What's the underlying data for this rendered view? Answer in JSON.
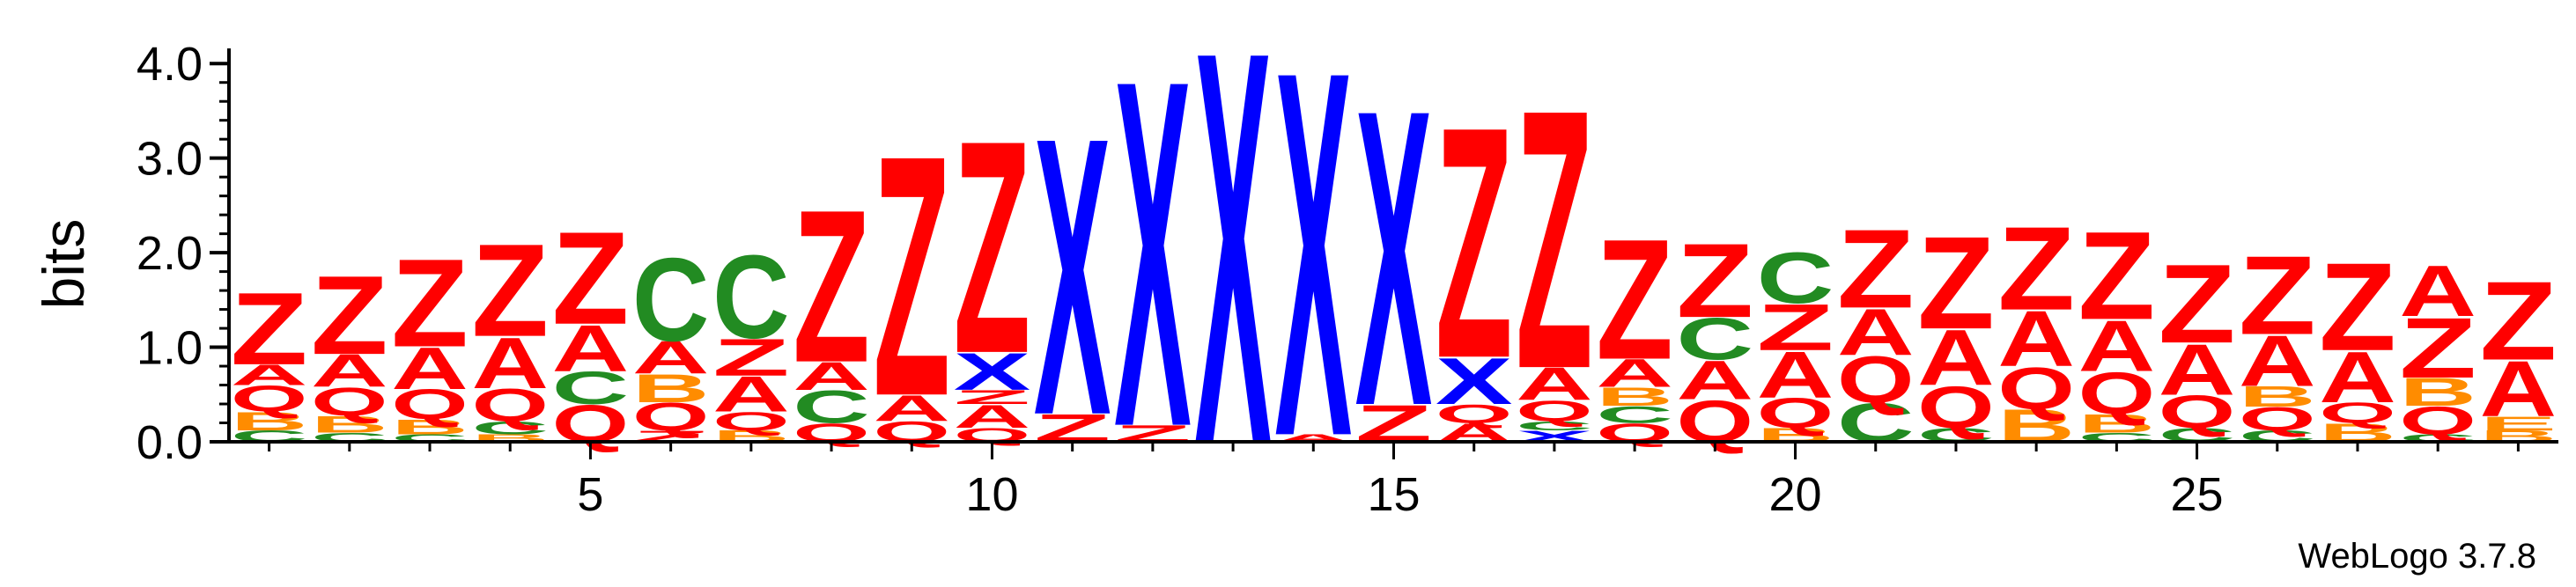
{
  "chart_data": {
    "type": "sequence-logo",
    "ylabel": "bits",
    "ylim": [
      0,
      4.3
    ],
    "y_ticks": [
      "0.0",
      "1.0",
      "2.0",
      "3.0",
      "4.0"
    ],
    "x_ticks": [
      "5",
      "10",
      "15",
      "20",
      "25"
    ],
    "x_tick_positions": [
      5,
      10,
      15,
      20,
      25
    ],
    "credit": "WebLogo 3.7.8",
    "colors": {
      "Z": "#ff0000",
      "A": "#ff0000",
      "Q": "#ff0000",
      "X": "#0000ff",
      "C": "#228b22",
      "B": "#ff8c00",
      "E": "#ff8c00"
    },
    "positions": [
      {
        "pos": 1,
        "stack": [
          [
            "C",
            0.12
          ],
          [
            "B",
            0.2
          ],
          [
            "Q",
            0.28
          ],
          [
            "A",
            0.22
          ],
          [
            "Z",
            0.78
          ]
        ]
      },
      {
        "pos": 2,
        "stack": [
          [
            "C",
            0.1
          ],
          [
            "B",
            0.18
          ],
          [
            "Q",
            0.3
          ],
          [
            "A",
            0.35
          ],
          [
            "Z",
            0.85
          ]
        ]
      },
      {
        "pos": 3,
        "stack": [
          [
            "C",
            0.08
          ],
          [
            "B",
            0.16
          ],
          [
            "Q",
            0.32
          ],
          [
            "A",
            0.45
          ],
          [
            "Z",
            0.95
          ]
        ]
      },
      {
        "pos": 4,
        "stack": [
          [
            "B",
            0.08
          ],
          [
            "C",
            0.14
          ],
          [
            "Q",
            0.35
          ],
          [
            "A",
            0.55
          ],
          [
            "Z",
            1.0
          ]
        ]
      },
      {
        "pos": 5,
        "stack": [
          [
            "Q",
            0.4
          ],
          [
            "C",
            0.35
          ],
          [
            "A",
            0.5
          ],
          [
            "Z",
            1.0
          ]
        ]
      },
      {
        "pos": 6,
        "stack": [
          [
            "Z",
            0.12
          ],
          [
            "Q",
            0.3
          ],
          [
            "B",
            0.3
          ],
          [
            "A",
            0.35
          ],
          [
            "C",
            0.9
          ]
        ]
      },
      {
        "pos": 7,
        "stack": [
          [
            "B",
            0.12
          ],
          [
            "Q",
            0.2
          ],
          [
            "A",
            0.38
          ],
          [
            "Z",
            0.4
          ],
          [
            "C",
            0.9
          ]
        ]
      },
      {
        "pos": 8,
        "stack": [
          [
            "Q",
            0.2
          ],
          [
            "C",
            0.35
          ],
          [
            "A",
            0.3
          ],
          [
            "Z",
            1.65
          ]
        ]
      },
      {
        "pos": 9,
        "stack": [
          [
            "Q",
            0.22
          ],
          [
            "A",
            0.28
          ],
          [
            "Z",
            2.6
          ]
        ]
      },
      {
        "pos": 10,
        "stack": [
          [
            "Q",
            0.15
          ],
          [
            "A",
            0.25
          ],
          [
            "Z",
            0.15
          ],
          [
            "X",
            0.4
          ],
          [
            "Z",
            2.3
          ]
        ]
      },
      {
        "pos": 11,
        "stack": [
          [
            "Z",
            0.3
          ],
          [
            "X",
            3.0
          ]
        ]
      },
      {
        "pos": 12,
        "stack": [
          [
            "Z",
            0.18
          ],
          [
            "X",
            3.75
          ]
        ]
      },
      {
        "pos": 13,
        "stack": [
          [
            "X",
            4.25
          ]
        ]
      },
      {
        "pos": 14,
        "stack": [
          [
            "A",
            0.08
          ],
          [
            "X",
            3.95
          ]
        ]
      },
      {
        "pos": 15,
        "stack": [
          [
            "Z",
            0.4
          ],
          [
            "X",
            3.2
          ]
        ]
      },
      {
        "pos": 16,
        "stack": [
          [
            "A",
            0.2
          ],
          [
            "Q",
            0.2
          ],
          [
            "X",
            0.5
          ],
          [
            "Z",
            2.5
          ]
        ]
      },
      {
        "pos": 17,
        "stack": [
          [
            "X",
            0.12
          ],
          [
            "C",
            0.1
          ],
          [
            "Q",
            0.22
          ],
          [
            "A",
            0.35
          ],
          [
            "Z",
            2.8
          ]
        ]
      },
      {
        "pos": 18,
        "stack": [
          [
            "Q",
            0.2
          ],
          [
            "C",
            0.18
          ],
          [
            "B",
            0.2
          ],
          [
            "A",
            0.3
          ],
          [
            "Z",
            1.3
          ]
        ]
      },
      {
        "pos": 19,
        "stack": [
          [
            "Q",
            0.45
          ],
          [
            "A",
            0.42
          ],
          [
            "C",
            0.45
          ],
          [
            "Z",
            0.8
          ]
        ]
      },
      {
        "pos": 20,
        "stack": [
          [
            "B",
            0.15
          ],
          [
            "Q",
            0.32
          ],
          [
            "A",
            0.5
          ],
          [
            "Z",
            0.5
          ],
          [
            "C",
            0.55
          ]
        ]
      },
      {
        "pos": 21,
        "stack": [
          [
            "C",
            0.42
          ],
          [
            "Q",
            0.5
          ],
          [
            "A",
            0.5
          ],
          [
            "Z",
            0.85
          ]
        ]
      },
      {
        "pos": 22,
        "stack": [
          [
            "C",
            0.15
          ],
          [
            "Q",
            0.45
          ],
          [
            "A",
            0.6
          ],
          [
            "Z",
            1.0
          ]
        ]
      },
      {
        "pos": 23,
        "stack": [
          [
            "B",
            0.35
          ],
          [
            "Q",
            0.45
          ],
          [
            "A",
            0.6
          ],
          [
            "Z",
            0.9
          ]
        ]
      },
      {
        "pos": 24,
        "stack": [
          [
            "C",
            0.1
          ],
          [
            "B",
            0.2
          ],
          [
            "Q",
            0.45
          ],
          [
            "A",
            0.55
          ],
          [
            "Z",
            0.95
          ]
        ]
      },
      {
        "pos": 25,
        "stack": [
          [
            "C",
            0.15
          ],
          [
            "Q",
            0.35
          ],
          [
            "A",
            0.55
          ],
          [
            "Z",
            0.85
          ]
        ]
      },
      {
        "pos": 26,
        "stack": [
          [
            "C",
            0.12
          ],
          [
            "Q",
            0.25
          ],
          [
            "B",
            0.22
          ],
          [
            "A",
            0.55
          ],
          [
            "Z",
            0.85
          ]
        ]
      },
      {
        "pos": 27,
        "stack": [
          [
            "B",
            0.2
          ],
          [
            "Q",
            0.22
          ],
          [
            "A",
            0.55
          ],
          [
            "Z",
            0.95
          ]
        ]
      },
      {
        "pos": 28,
        "stack": [
          [
            "C",
            0.08
          ],
          [
            "Q",
            0.3
          ],
          [
            "B",
            0.3
          ],
          [
            "Z",
            0.65
          ],
          [
            "A",
            0.55
          ]
        ]
      },
      {
        "pos": 29,
        "stack": [
          [
            "B",
            0.12
          ],
          [
            "E",
            0.15
          ],
          [
            "A",
            0.6
          ],
          [
            "Z",
            0.85
          ]
        ]
      }
    ]
  }
}
